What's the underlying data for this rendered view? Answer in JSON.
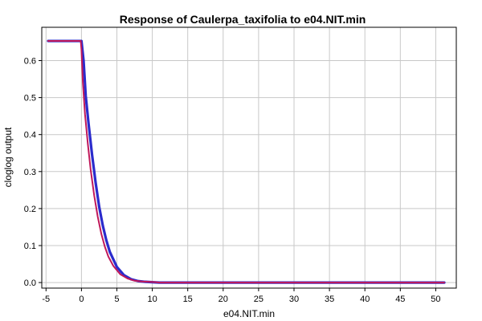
{
  "chart_data": {
    "type": "line",
    "title": "Response of Caulerpa_taxifolia to e04.NIT.min",
    "xlabel": "e04.NIT.min",
    "ylabel": "cloglog output",
    "xlim": [
      -5.6,
      52.9
    ],
    "ylim": [
      -0.015,
      0.69
    ],
    "x_ticks": [
      -5,
      0,
      5,
      10,
      15,
      20,
      25,
      30,
      35,
      40,
      45,
      50
    ],
    "y_ticks": [
      0.0,
      0.1,
      0.2,
      0.3,
      0.4,
      0.5,
      0.6
    ],
    "grid": true,
    "series": [
      {
        "color": "#2b2bcc",
        "x": [
          -4.7,
          0.0,
          0.3,
          0.6,
          1.0,
          1.5,
          2.0,
          2.5,
          3.0,
          3.5,
          4.0,
          5.0,
          6.0,
          7.0,
          8.0,
          9.0,
          10.0,
          11.0,
          20.0,
          30.0,
          40.0,
          51.2
        ],
        "y": [
          0.653,
          0.653,
          0.6,
          0.505,
          0.43,
          0.345,
          0.27,
          0.205,
          0.155,
          0.115,
          0.083,
          0.042,
          0.02,
          0.009,
          0.004,
          0.002,
          0.001,
          0.0,
          0.0,
          0.0,
          0.0,
          0.0
        ]
      },
      {
        "color": "#c0185a",
        "x": [
          -4.7,
          -0.1,
          0.0,
          0.2,
          0.5,
          0.9,
          1.3,
          1.8,
          2.3,
          2.8,
          3.3,
          3.8,
          4.5,
          5.5,
          6.5,
          7.5,
          8.5,
          9.5,
          10.5,
          11.0,
          20.0,
          30.0,
          40.0,
          51.2
        ],
        "y": [
          0.653,
          0.653,
          0.63,
          0.54,
          0.455,
          0.375,
          0.305,
          0.235,
          0.178,
          0.132,
          0.097,
          0.07,
          0.045,
          0.022,
          0.011,
          0.005,
          0.003,
          0.002,
          0.001,
          0.0,
          0.0,
          0.0,
          0.0,
          0.0
        ]
      }
    ]
  }
}
